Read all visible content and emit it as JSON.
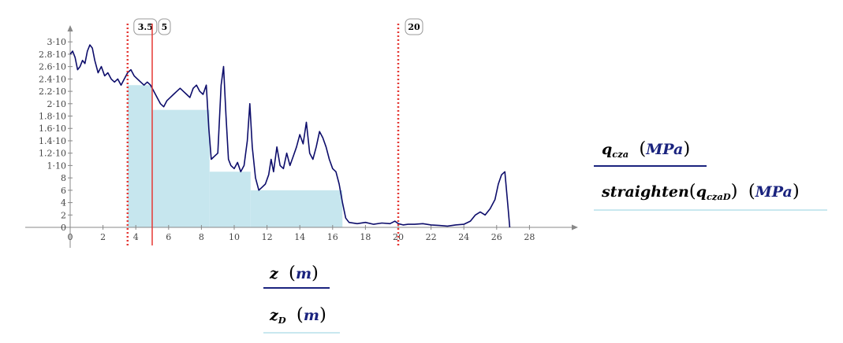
{
  "chart_data": {
    "type": "area",
    "xlim": [
      0,
      29
    ],
    "ylim": [
      0,
      3
    ],
    "x_ticks": [
      0,
      2,
      4,
      6,
      8,
      10,
      12,
      14,
      16,
      18,
      20,
      22,
      24,
      26,
      28
    ],
    "y_ticks": [
      {
        "v": 3.0,
        "label": "3·10"
      },
      {
        "v": 2.8,
        "label": "2.8·10"
      },
      {
        "v": 2.6,
        "label": "2.6·10"
      },
      {
        "v": 2.4,
        "label": "2.4·10"
      },
      {
        "v": 2.2,
        "label": "2.2·10"
      },
      {
        "v": 2.0,
        "label": "2·10"
      },
      {
        "v": 1.8,
        "label": "1.8·10"
      },
      {
        "v": 1.6,
        "label": "1.6·10"
      },
      {
        "v": 1.4,
        "label": "1.4·10"
      },
      {
        "v": 1.2,
        "label": "1.2·10"
      },
      {
        "v": 1.0,
        "label": "1·10"
      },
      {
        "v": 0.8,
        "label": "8"
      },
      {
        "v": 0.6,
        "label": "6"
      },
      {
        "v": 0.4,
        "label": "4"
      },
      {
        "v": 0.2,
        "label": "2"
      },
      {
        "v": 0.0,
        "label": "0"
      }
    ],
    "markers": [
      {
        "x": 3.5,
        "label": "3.5",
        "style": "dotted",
        "color": "#e53935"
      },
      {
        "x": 5,
        "label": "5",
        "style": "solid",
        "color": "#e53935"
      },
      {
        "x": 20,
        "label": "20",
        "style": "dotted",
        "color": "#e53935"
      }
    ],
    "series": [
      {
        "color": "#0d0d6b",
        "x": [
          0,
          0.15,
          0.3,
          0.45,
          0.6,
          0.75,
          0.9,
          1.05,
          1.2,
          1.35,
          1.5,
          1.7,
          1.9,
          2.1,
          2.3,
          2.5,
          2.7,
          2.9,
          3.1,
          3.3,
          3.5,
          3.7,
          3.9,
          4.1,
          4.3,
          4.5,
          4.7,
          4.9,
          5.1,
          5.3,
          5.5,
          5.7,
          5.9,
          6.1,
          6.3,
          6.5,
          6.7,
          6.9,
          7.1,
          7.3,
          7.5,
          7.7,
          7.9,
          8.1,
          8.3,
          8.45,
          8.6,
          8.8,
          9.0,
          9.2,
          9.35,
          9.5,
          9.65,
          9.8,
          10.0,
          10.2,
          10.4,
          10.6,
          10.8,
          10.95,
          11.1,
          11.3,
          11.5,
          11.7,
          11.9,
          12.1,
          12.25,
          12.4,
          12.6,
          12.8,
          13.0,
          13.2,
          13.4,
          13.6,
          13.8,
          14.0,
          14.2,
          14.4,
          14.6,
          14.8,
          15.0,
          15.2,
          15.4,
          15.6,
          15.8,
          16.0,
          16.2,
          16.4,
          16.6,
          16.8,
          17.0,
          17.5,
          18.0,
          18.5,
          19.0,
          19.5,
          19.8,
          20.0,
          20.3,
          20.6,
          21.0,
          21.5,
          22.0,
          22.5,
          23.0,
          23.5,
          24.0,
          24.4,
          24.7,
          25.0,
          25.3,
          25.6,
          25.9,
          26.1,
          26.3,
          26.5,
          26.7,
          26.8
        ],
        "y": [
          2.8,
          2.85,
          2.75,
          2.55,
          2.6,
          2.7,
          2.65,
          2.85,
          2.95,
          2.9,
          2.7,
          2.5,
          2.6,
          2.45,
          2.5,
          2.4,
          2.35,
          2.4,
          2.3,
          2.4,
          2.5,
          2.55,
          2.45,
          2.4,
          2.35,
          2.3,
          2.35,
          2.3,
          2.2,
          2.1,
          2.0,
          1.95,
          2.05,
          2.1,
          2.15,
          2.2,
          2.25,
          2.2,
          2.15,
          2.1,
          2.25,
          2.3,
          2.2,
          2.15,
          2.3,
          1.6,
          1.1,
          1.15,
          1.2,
          2.3,
          2.6,
          1.8,
          1.1,
          1.0,
          0.95,
          1.05,
          0.9,
          1.0,
          1.4,
          2.0,
          1.3,
          0.8,
          0.6,
          0.65,
          0.7,
          0.85,
          1.1,
          0.9,
          1.3,
          1.0,
          0.95,
          1.2,
          1.0,
          1.15,
          1.3,
          1.5,
          1.35,
          1.7,
          1.2,
          1.1,
          1.3,
          1.55,
          1.45,
          1.3,
          1.1,
          0.95,
          0.9,
          0.7,
          0.4,
          0.15,
          0.08,
          0.06,
          0.08,
          0.05,
          0.07,
          0.06,
          0.1,
          0.06,
          0.04,
          0.05,
          0.05,
          0.06,
          0.04,
          0.03,
          0.02,
          0.04,
          0.05,
          0.1,
          0.2,
          0.25,
          0.2,
          0.3,
          0.45,
          0.7,
          0.85,
          0.9,
          0.3,
          0.0
        ]
      }
    ],
    "fill": {
      "color": "#c6e6ee",
      "steps": [
        {
          "x0": 3.5,
          "x1": 5.0,
          "y": 2.3
        },
        {
          "x0": 5.0,
          "x1": 8.5,
          "y": 1.9
        },
        {
          "x0": 8.5,
          "x1": 11.0,
          "y": 0.9
        },
        {
          "x0": 11.0,
          "x1": 12.5,
          "y": 0.6
        },
        {
          "x0": 12.5,
          "x1": 16.6,
          "y": 0.6
        },
        {
          "x0": 16.6,
          "x1": 20.0,
          "y": 0.0
        }
      ]
    }
  },
  "labels": {
    "right": {
      "y1_var": "q",
      "y1_sub": "cza",
      "y1_unit": "MPa",
      "y2_func": "straighten",
      "y2_var": "q",
      "y2_sub": "czaD",
      "y2_unit": "MPa"
    },
    "bottom": {
      "x1_var": "z",
      "x1_unit": "m",
      "x2_var": "z",
      "x2_sub": "D",
      "x2_unit": "m"
    }
  }
}
